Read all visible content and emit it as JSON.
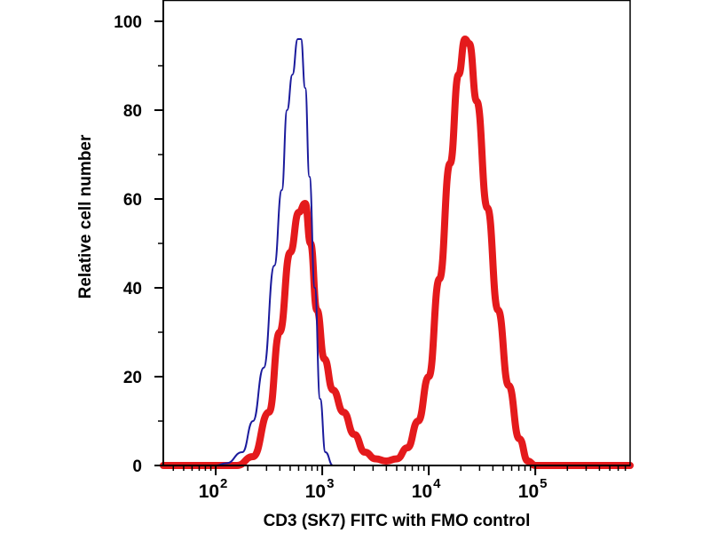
{
  "chart_data": {
    "type": "line",
    "title": "",
    "xlabel": "CD3 (SK7) FITC with FMO control",
    "ylabel": "Relative cell number",
    "xscale": "log",
    "xlim_log10": [
      1.508,
      5.89
    ],
    "ylim": [
      0,
      104.8
    ],
    "yticks": [
      0,
      20,
      40,
      60,
      80,
      100
    ],
    "ytick_labels": [
      "0",
      "20",
      "40",
      "60",
      "80",
      "100"
    ],
    "xticks_log10": [
      2,
      3,
      4,
      5
    ],
    "xtick_labels": [
      {
        "base": "10",
        "exp": "2"
      },
      {
        "base": "10",
        "exp": "3"
      },
      {
        "base": "10",
        "exp": "4"
      },
      {
        "base": "10",
        "exp": "5"
      }
    ],
    "grid": false,
    "series": [
      {
        "name": "FMO control",
        "color": "#1a1a9c",
        "x_log10": [
          1.508,
          2.0,
          2.1,
          2.25,
          2.35,
          2.45,
          2.55,
          2.62,
          2.67,
          2.72,
          2.77,
          2.8,
          2.84,
          2.88,
          2.93,
          2.98,
          3.03,
          3.1,
          5.89
        ],
        "y": [
          0,
          0,
          0.5,
          3,
          10,
          22,
          45,
          62,
          80,
          88,
          96,
          96,
          85,
          65,
          40,
          15,
          3,
          0,
          0
        ]
      },
      {
        "name": "CD3 (SK7) FITC",
        "color": "#e41a1c",
        "x_log10": [
          1.508,
          2.2,
          2.35,
          2.5,
          2.6,
          2.7,
          2.78,
          2.84,
          2.89,
          2.95,
          3.02,
          3.1,
          3.2,
          3.3,
          3.4,
          3.5,
          3.6,
          3.7,
          3.8,
          3.9,
          4.0,
          4.1,
          4.2,
          4.28,
          4.34,
          4.38,
          4.45,
          4.55,
          4.65,
          4.75,
          4.85,
          4.93,
          5.0,
          5.89
        ],
        "y": [
          0,
          0,
          2,
          12,
          30,
          48,
          57,
          59,
          50,
          35,
          24,
          17,
          12,
          7,
          3,
          1.5,
          1,
          1.5,
          4,
          10,
          20,
          42,
          68,
          88,
          96,
          95,
          82,
          58,
          35,
          18,
          6,
          1,
          0,
          0
        ]
      }
    ]
  }
}
